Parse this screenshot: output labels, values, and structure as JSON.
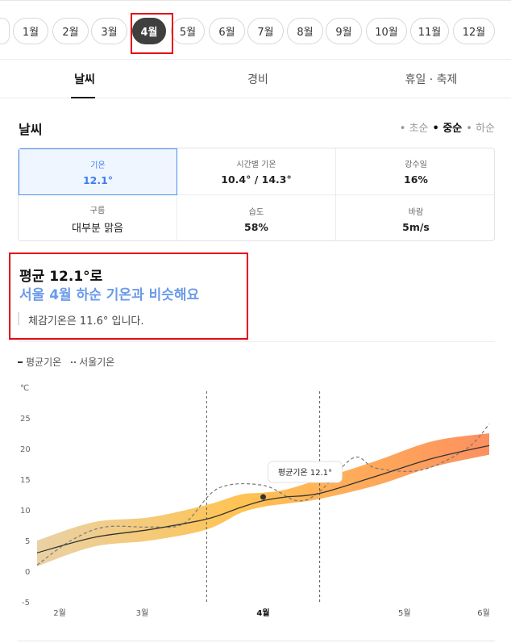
{
  "months": [
    "1월",
    "2월",
    "3월",
    "4월",
    "5월",
    "6월",
    "7월",
    "8월",
    "9월",
    "10월",
    "11월",
    "12월"
  ],
  "active_month": "4월",
  "tabs": [
    {
      "label": "날씨"
    },
    {
      "label": "경비"
    },
    {
      "label": "휴일 · 축제"
    }
  ],
  "weather": {
    "title": "날씨",
    "periods": [
      "• 초순",
      "• 중순",
      "• 하순"
    ],
    "stats": [
      {
        "label": "기온",
        "value": "12.1°"
      },
      {
        "label": "시간별 기온",
        "value": "10.4° / 14.3°"
      },
      {
        "label": "강수일",
        "value": "16%"
      },
      {
        "label": "구름",
        "value": "대부분 맑음"
      },
      {
        "label": "습도",
        "value": "58%"
      },
      {
        "label": "바람",
        "value": "5m/s"
      }
    ]
  },
  "summary": {
    "line1": "평균 12.1°로",
    "line2": "서울 4월 하순 기온과 비슷해요",
    "line3": "체감기온은 11.6° 입니다."
  },
  "legend": {
    "avg": "평균기온",
    "seoul": "서울기온"
  },
  "colors": {
    "accent": "#3d7df0",
    "band_start": "#e8cfa0",
    "band_mid": "#ffc04a",
    "band_end": "#fd8a58",
    "highlight": "#e60012"
  },
  "chart_data": {
    "type": "area",
    "unit": "℃",
    "ylim": [
      -5,
      25
    ],
    "yticks": [
      -5,
      0,
      5,
      10,
      15,
      20,
      25
    ],
    "x_labels": [
      "2월",
      "3월",
      "4월",
      "5월",
      "6월"
    ],
    "highlight_label": "4월",
    "tooltip": "평균기온 12.1°",
    "series": [
      {
        "name": "평균기온",
        "x": [
          0,
          0.5,
          1,
          1.5,
          1.8,
          2,
          2.2,
          2.5,
          3,
          3.5,
          4
        ],
        "y": [
          3,
          5.5,
          6.8,
          8.5,
          10.4,
          11.5,
          12.1,
          12.7,
          15.5,
          18.4,
          20.5
        ]
      },
      {
        "name": "서울기온",
        "x": [
          0,
          0.3,
          0.6,
          1,
          1.3,
          1.6,
          2,
          2.3,
          2.5,
          2.8,
          3,
          3.4,
          3.8,
          4
        ],
        "y": [
          1,
          5,
          7.2,
          7.2,
          7.8,
          13.5,
          14,
          11.5,
          13,
          18.5,
          16.8,
          16.5,
          20,
          24
        ]
      }
    ],
    "band_low": [
      0.8,
      4,
      5,
      6.8,
      9.5,
      10.5,
      11,
      11.8,
      14,
      17,
      19
    ],
    "band_high": [
      5,
      8,
      8.8,
      10.8,
      12.5,
      12.8,
      13.3,
      15,
      18,
      21.2,
      22.5
    ]
  }
}
